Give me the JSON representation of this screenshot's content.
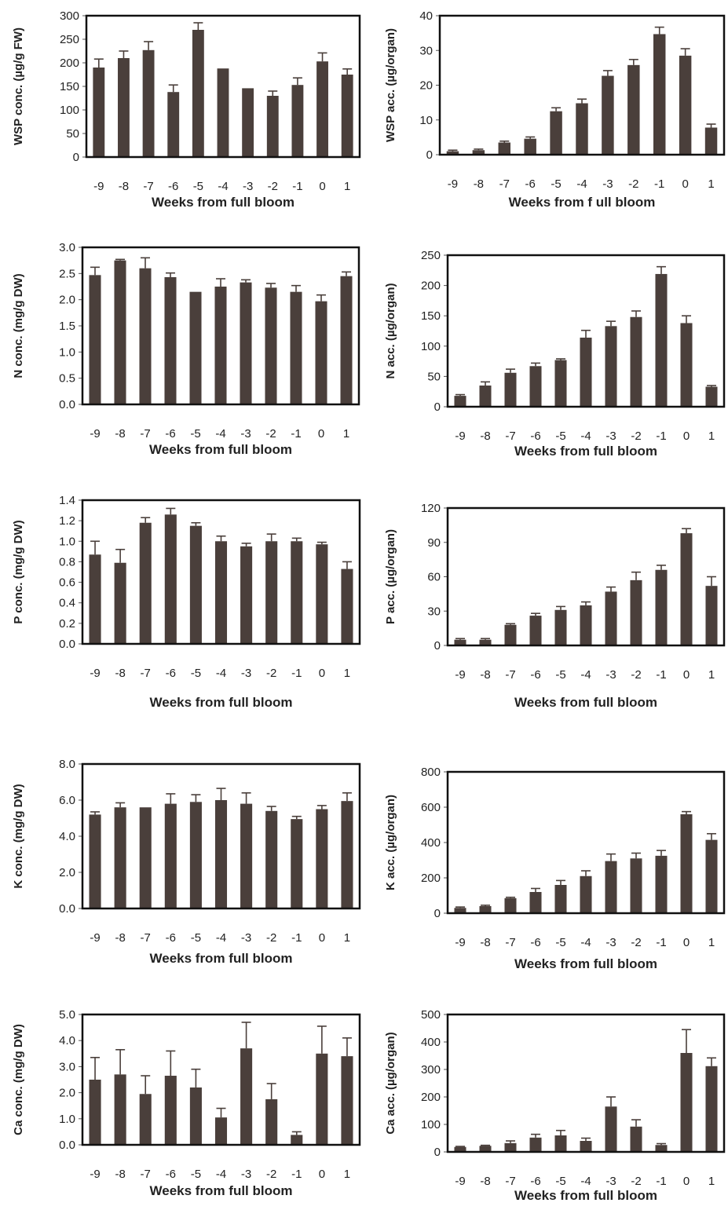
{
  "colors": {
    "bar": "#4a3f3b",
    "frame": "#111111",
    "axis": "#555555"
  },
  "chart_data": [
    {
      "type": "bar",
      "title": "",
      "xlabel": "Weeks  from  full  bloom",
      "ylabel": "WSP conc. (µg/g FW)",
      "categories": [
        "-9",
        "-8",
        "-7",
        "-6",
        "-5",
        "-4",
        "-3",
        "-2",
        "-1",
        "0",
        "1"
      ],
      "values": [
        190,
        210,
        227,
        138,
        270,
        188,
        146,
        130,
        153,
        203,
        175
      ],
      "errors": [
        18,
        15,
        18,
        15,
        15,
        0,
        0,
        10,
        15,
        18,
        12
      ],
      "ylim": [
        0,
        300
      ],
      "yticks": [
        "0",
        "50",
        "100",
        "150",
        "200",
        "250",
        "300"
      ],
      "grid": false
    },
    {
      "type": "bar",
      "title": "",
      "xlabel": "Weeks  from f ull  bloom",
      "ylabel": "WSP  acc. (µg/organ)",
      "categories": [
        "-9",
        "-8",
        "-7",
        "-6",
        "-5",
        "-4",
        "-3",
        "-2",
        "-1",
        "0",
        "1"
      ],
      "values": [
        1.0,
        1.3,
        3.5,
        4.6,
        12.5,
        14.8,
        22.7,
        25.8,
        34.7,
        28.5,
        7.8
      ],
      "errors": [
        0.3,
        0.3,
        0.4,
        0.5,
        1.0,
        1.2,
        1.5,
        1.6,
        2.0,
        2.0,
        1.0
      ],
      "ylim": [
        0,
        40
      ],
      "yticks": [
        "0",
        "10",
        "20",
        "30",
        "40"
      ],
      "grid": false
    },
    {
      "type": "bar",
      "title": "",
      "xlabel": "Weeks  from  full  bloom",
      "ylabel": "N conc. (mg/g DW)",
      "categories": [
        "-9",
        "-8",
        "-7",
        "-6",
        "-5",
        "-4",
        "-3",
        "-2",
        "-1",
        "0",
        "1"
      ],
      "values": [
        2.47,
        2.75,
        2.6,
        2.43,
        2.15,
        2.25,
        2.33,
        2.23,
        2.15,
        1.97,
        2.45
      ],
      "errors": [
        0.15,
        0.02,
        0.2,
        0.08,
        0.0,
        0.15,
        0.05,
        0.08,
        0.12,
        0.12,
        0.08
      ],
      "ylim": [
        0,
        3.0
      ],
      "yticks": [
        "0.0",
        "0.5",
        "1.0",
        "1.5",
        "2.0",
        "2.5",
        "3.0"
      ],
      "grid": false
    },
    {
      "type": "bar",
      "title": "",
      "xlabel": "Weeks  from full bloom",
      "ylabel": "N  acc. (µg/organ)",
      "categories": [
        "-9",
        "-8",
        "-7",
        "-6",
        "-5",
        "-4",
        "-3",
        "-2",
        "-1",
        "0",
        "1"
      ],
      "values": [
        18,
        35,
        56,
        67,
        77,
        114,
        133,
        148,
        219,
        138,
        33
      ],
      "errors": [
        2,
        6,
        6,
        5,
        2,
        12,
        8,
        10,
        12,
        12,
        2
      ],
      "ylim": [
        0,
        250
      ],
      "yticks": [
        "0",
        "50",
        "100",
        "150",
        "200",
        "250"
      ],
      "grid": false
    },
    {
      "type": "bar",
      "title": "",
      "xlabel": "Weeks from full bloom",
      "ylabel": "P conc. (mg/g DW)",
      "categories": [
        "-9",
        "-8",
        "-7",
        "-6",
        "-5",
        "-4",
        "-3",
        "-2",
        "-1",
        "0",
        "1"
      ],
      "values": [
        0.87,
        0.79,
        1.18,
        1.26,
        1.15,
        1.0,
        0.95,
        1.0,
        1.0,
        0.97,
        0.73
      ],
      "errors": [
        0.13,
        0.13,
        0.05,
        0.06,
        0.03,
        0.05,
        0.03,
        0.07,
        0.03,
        0.02,
        0.07
      ],
      "ylim": [
        0,
        1.4
      ],
      "yticks": [
        "0.0",
        "0.2",
        "0.4",
        "0.6",
        "0.8",
        "1.0",
        "1.2",
        "1.4"
      ],
      "grid": false
    },
    {
      "type": "bar",
      "title": "",
      "xlabel": "Weeks  from full bloom",
      "ylabel": "P  acc. (µg/organ)",
      "categories": [
        "-9",
        "-8",
        "-7",
        "-6",
        "-5",
        "-4",
        "-3",
        "-2",
        "-1",
        "0",
        "1"
      ],
      "values": [
        5,
        5,
        18,
        26,
        31,
        35,
        47,
        57,
        66,
        98,
        52
      ],
      "errors": [
        1,
        1,
        1,
        2,
        3,
        3,
        4,
        7,
        4,
        4,
        8
      ],
      "ylim": [
        0,
        120
      ],
      "yticks": [
        "0",
        "30",
        "60",
        "90",
        "120"
      ],
      "grid": false
    },
    {
      "type": "bar",
      "title": "",
      "xlabel": "Weeks  from full bloom",
      "ylabel": "K  conc. (mg/g DW)",
      "categories": [
        "-9",
        "-8",
        "-7",
        "-6",
        "-5",
        "-4",
        "-3",
        "-2",
        "-1",
        "0",
        "1"
      ],
      "values": [
        5.2,
        5.6,
        5.6,
        5.8,
        5.9,
        6.0,
        5.8,
        5.4,
        4.95,
        5.5,
        5.95
      ],
      "errors": [
        0.15,
        0.25,
        0.0,
        0.55,
        0.4,
        0.65,
        0.6,
        0.25,
        0.15,
        0.2,
        0.45
      ],
      "ylim": [
        0,
        8.0
      ],
      "yticks": [
        "0.0",
        "2.0",
        "4.0",
        "6.0",
        "8.0"
      ],
      "grid": false
    },
    {
      "type": "bar",
      "title": "",
      "xlabel": "Weeks  from full bloom",
      "ylabel": "K  acc. (µg/organ)",
      "categories": [
        "-9",
        "-8",
        "-7",
        "-6",
        "-5",
        "-4",
        "-3",
        "-2",
        "-1",
        "0",
        "1"
      ],
      "values": [
        30,
        40,
        85,
        120,
        160,
        210,
        295,
        310,
        325,
        560,
        415
      ],
      "errors": [
        5,
        5,
        5,
        20,
        25,
        30,
        40,
        30,
        30,
        15,
        35
      ],
      "ylim": [
        0,
        800
      ],
      "yticks": [
        "0",
        "200",
        "400",
        "600",
        "800"
      ],
      "grid": false
    },
    {
      "type": "bar",
      "title": "",
      "xlabel": "Weeks  from full bloom",
      "ylabel": "Ca conc. (mg/g DW)",
      "categories": [
        "-9",
        "-8",
        "-7",
        "-6",
        "-5",
        "-4",
        "-3",
        "-2",
        "-1",
        "0",
        "1"
      ],
      "values": [
        2.5,
        2.7,
        1.95,
        2.65,
        2.2,
        1.05,
        3.7,
        1.75,
        0.38,
        3.5,
        3.4
      ],
      "errors": [
        0.85,
        0.95,
        0.7,
        0.95,
        0.7,
        0.35,
        1.0,
        0.6,
        0.12,
        1.05,
        0.7
      ],
      "ylim": [
        0,
        5.0
      ],
      "yticks": [
        "0.0",
        "1.0",
        "2.0",
        "3.0",
        "4.0",
        "5.0"
      ],
      "grid": false
    },
    {
      "type": "bar",
      "title": "",
      "xlabel": "Weeks from full bloom",
      "ylabel": "Ca acc. (µg/organ)",
      "categories": [
        "-9",
        "-8",
        "-7",
        "-6",
        "-5",
        "-4",
        "-3",
        "-2",
        "-1",
        "0",
        "1"
      ],
      "values": [
        18,
        22,
        32,
        52,
        60,
        40,
        165,
        92,
        25,
        360,
        312
      ],
      "errors": [
        2,
        2,
        8,
        12,
        18,
        10,
        35,
        25,
        5,
        85,
        30
      ],
      "ylim": [
        0,
        500
      ],
      "yticks": [
        "0",
        "100",
        "200",
        "300",
        "400",
        "500"
      ],
      "grid": false
    }
  ]
}
